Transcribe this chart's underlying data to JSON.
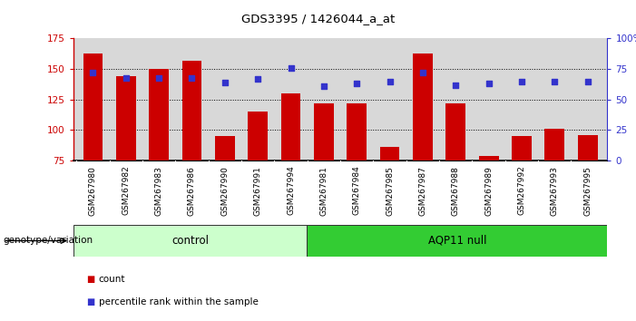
{
  "title": "GDS3395 / 1426044_a_at",
  "categories": [
    "GSM267980",
    "GSM267982",
    "GSM267983",
    "GSM267986",
    "GSM267990",
    "GSM267991",
    "GSM267994",
    "GSM267981",
    "GSM267984",
    "GSM267985",
    "GSM267987",
    "GSM267988",
    "GSM267989",
    "GSM267992",
    "GSM267993",
    "GSM267995"
  ],
  "bar_values": [
    163,
    144,
    150,
    157,
    95,
    115,
    130,
    122,
    122,
    86,
    163,
    122,
    79,
    95,
    101,
    96
  ],
  "dot_values_pct": [
    72,
    68,
    68,
    68,
    64,
    67,
    76,
    61,
    63,
    65,
    72,
    62,
    63,
    65,
    65,
    65
  ],
  "bar_color": "#cc0000",
  "dot_color": "#3333cc",
  "ylim_left": [
    75,
    175
  ],
  "ylim_right": [
    0,
    100
  ],
  "yticks_left": [
    75,
    100,
    125,
    150,
    175
  ],
  "yticks_right": [
    0,
    25,
    50,
    75,
    100
  ],
  "ytick_labels_right": [
    "0",
    "25",
    "50",
    "75",
    "100%"
  ],
  "group1_label": "control",
  "group2_label": "AQP11 null",
  "group1_count": 7,
  "group2_count": 9,
  "group1_color": "#ccffcc",
  "group2_color": "#33cc33",
  "genotype_label": "genotype/variation",
  "legend_bar": "count",
  "legend_dot": "percentile rank within the sample",
  "grid_values": [
    100,
    125,
    150
  ],
  "background_color": "#ffffff",
  "plot_bg_color": "#d8d8d8",
  "xtick_bg_color": "#d0d0d0"
}
